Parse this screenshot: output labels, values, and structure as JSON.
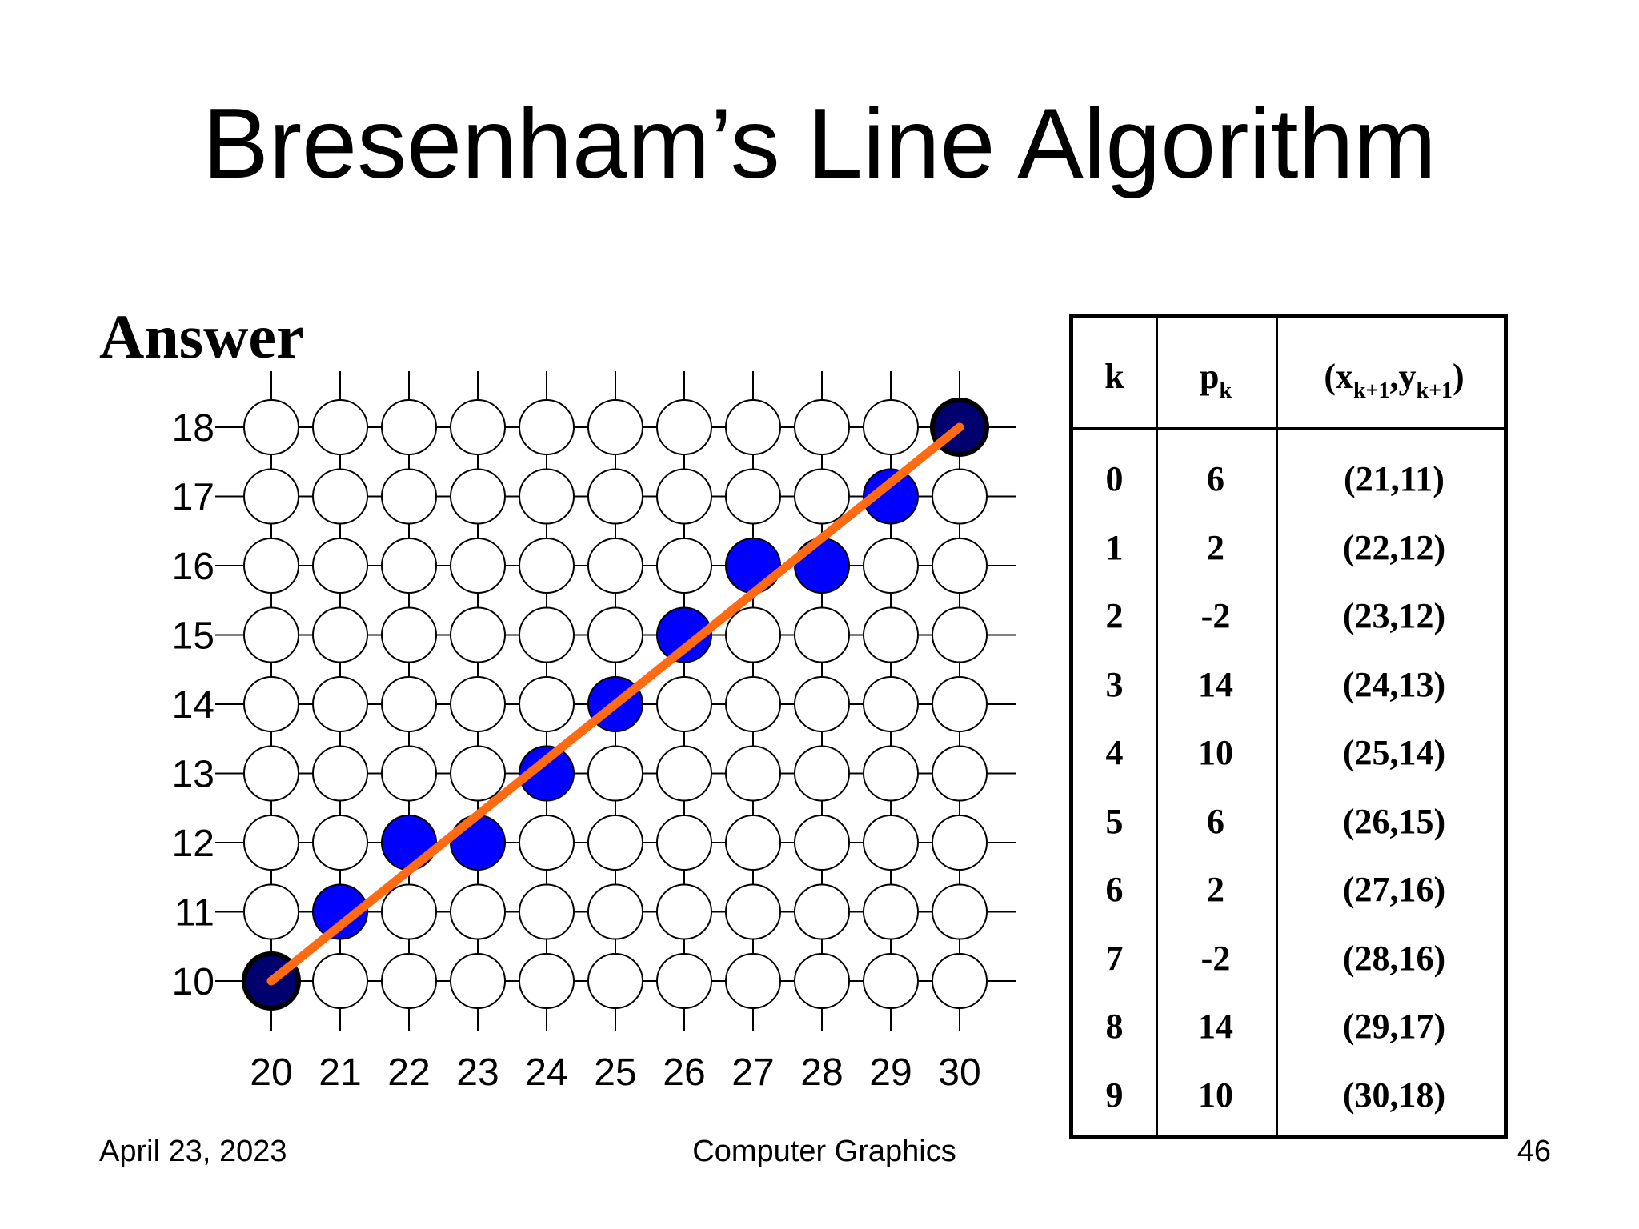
{
  "slide": {
    "title": "Bresenham’s Line Algorithm",
    "subtitle": "Answer"
  },
  "chart_data": {
    "type": "scatter",
    "x_ticks": [
      20,
      21,
      22,
      23,
      24,
      25,
      26,
      27,
      28,
      29,
      30
    ],
    "y_ticks": [
      10,
      11,
      12,
      13,
      14,
      15,
      16,
      17,
      18
    ],
    "endpoints": [
      [
        20,
        10
      ],
      [
        30,
        18
      ]
    ],
    "plotted_pixels": [
      [
        21,
        11
      ],
      [
        22,
        12
      ],
      [
        23,
        12
      ],
      [
        24,
        13
      ],
      [
        25,
        14
      ],
      [
        26,
        15
      ],
      [
        27,
        16
      ],
      [
        28,
        16
      ],
      [
        29,
        17
      ]
    ],
    "line": {
      "from": [
        20,
        10
      ],
      "to": [
        30,
        18
      ]
    },
    "colors": {
      "empty": "#ffffff",
      "plotted": "#0000ff",
      "endpoint": "#00006e",
      "line": "#ff6a13",
      "grid": "#000000"
    }
  },
  "table": {
    "headers": {
      "k": "k",
      "p": "p",
      "p_sub": "k",
      "coord_open": "(x",
      "coord_sub1": "k+1",
      "coord_mid": ",y",
      "coord_sub2": "k+1",
      "coord_close": ")"
    },
    "rows": [
      {
        "k": "0",
        "p": "6",
        "coord": "(21,11)"
      },
      {
        "k": "1",
        "p": "2",
        "coord": "(22,12)"
      },
      {
        "k": "2",
        "p": "-2",
        "coord": "(23,12)"
      },
      {
        "k": "3",
        "p": "14",
        "coord": "(24,13)"
      },
      {
        "k": "4",
        "p": "10",
        "coord": "(25,14)"
      },
      {
        "k": "5",
        "p": "6",
        "coord": "(26,15)"
      },
      {
        "k": "6",
        "p": "2",
        "coord": "(27,16)"
      },
      {
        "k": "7",
        "p": "-2",
        "coord": "(28,16)"
      },
      {
        "k": "8",
        "p": "14",
        "coord": "(29,17)"
      },
      {
        "k": "9",
        "p": "10",
        "coord": "(30,18)"
      }
    ]
  },
  "footer": {
    "date": "April 23, 2023",
    "course": "Computer Graphics",
    "page": "46"
  }
}
